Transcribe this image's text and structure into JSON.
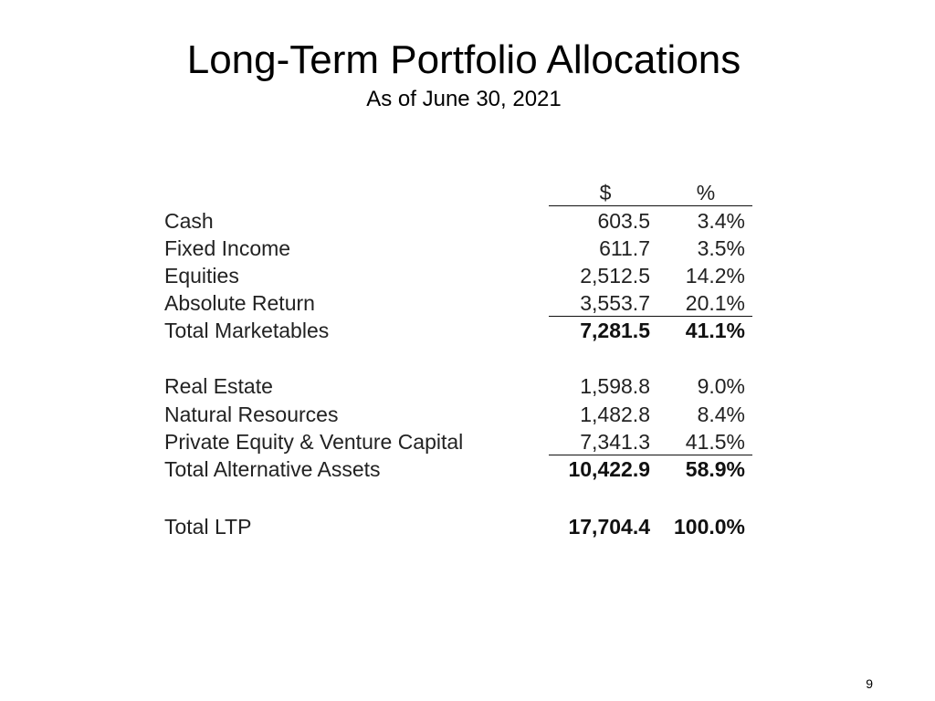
{
  "slide": {
    "title": "Long-Term Portfolio Allocations",
    "subtitle": "As of June 30, 2021",
    "page_number": "9"
  },
  "table": {
    "headers": {
      "usd": "$",
      "pct": "%"
    },
    "rows": [
      {
        "label": "Cash",
        "usd": "603.5",
        "pct": "3.4%"
      },
      {
        "label": "Fixed Income",
        "usd": "611.7",
        "pct": "3.5%"
      },
      {
        "label": "Equities",
        "usd": "2,512.5",
        "pct": "14.2%"
      },
      {
        "label": "Absolute Return",
        "usd": "3,553.7",
        "pct": "20.1%"
      },
      {
        "label": "Total Marketables",
        "usd": "7,281.5",
        "pct": "41.1%"
      },
      {
        "label": "Real Estate",
        "usd": "1,598.8",
        "pct": "9.0%"
      },
      {
        "label": "Natural Resources",
        "usd": "1,482.8",
        "pct": "8.4%"
      },
      {
        "label": "Private Equity & Venture Capital",
        "usd": "7,341.3",
        "pct": "41.5%"
      },
      {
        "label": "Total Alternative Assets",
        "usd": "10,422.9",
        "pct": "58.9%"
      },
      {
        "label": "Total LTP",
        "usd": "17,704.4",
        "pct": "100.0%"
      }
    ]
  }
}
